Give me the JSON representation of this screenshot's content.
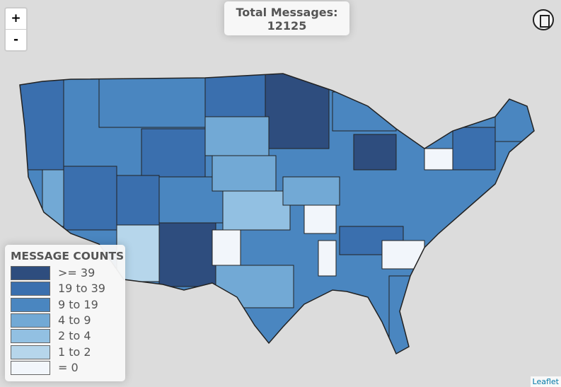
{
  "controls": {
    "zoom_in": "+",
    "zoom_out": "-"
  },
  "info": {
    "title": "Total Messages:",
    "total": 12125
  },
  "legend": {
    "title": "MESSAGE COUNTS",
    "items": [
      {
        "label": ">= 39",
        "color": "#2e4d7e"
      },
      {
        "label": "19 to 39",
        "color": "#3a6fae"
      },
      {
        "label": "9 to 19",
        "color": "#4a86c0"
      },
      {
        "label": "4 to 9",
        "color": "#72a9d5"
      },
      {
        "label": "2 to 4",
        "color": "#92c0e2"
      },
      {
        "label": "1 to 2",
        "color": "#b6d6eb"
      },
      {
        "label": "= 0",
        "color": "#f2f6fb"
      }
    ]
  },
  "attribution": "Leaflet"
}
